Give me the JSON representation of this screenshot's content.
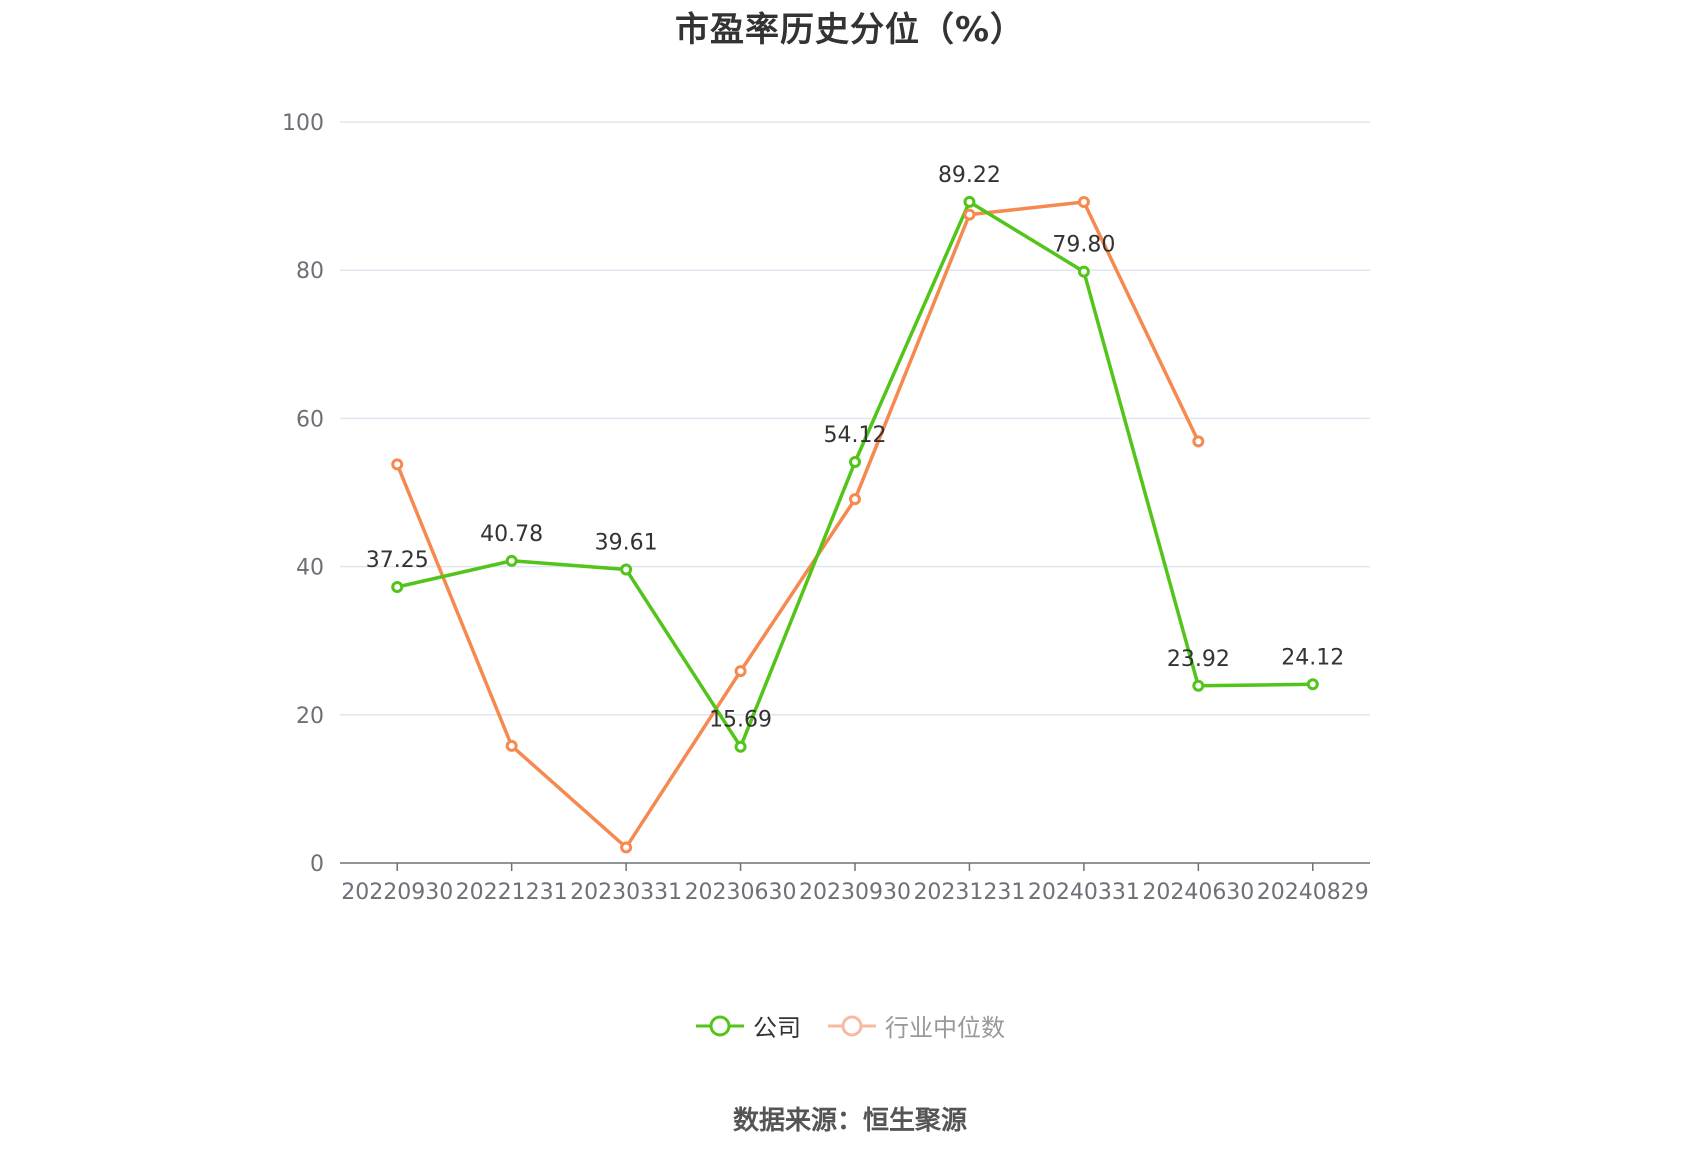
{
  "title": "市盈率历史分位（%）",
  "source": "数据来源：恒生聚源",
  "legend": {
    "company": "公司",
    "industry": "行业中位数"
  },
  "colors": {
    "company": "#52c41a",
    "industry": "#f5894f",
    "industry_legend": "#f9b8a0",
    "grid": "#e0e6f1",
    "axis": "#6e7079"
  },
  "chart_data": {
    "type": "line",
    "title": "市盈率历史分位（%）",
    "categories": [
      "20220930",
      "20221231",
      "20230331",
      "20230630",
      "20230930",
      "20231231",
      "20240331",
      "20240630",
      "20240829"
    ],
    "series": [
      {
        "name": "公司",
        "values": [
          37.25,
          40.78,
          39.61,
          15.69,
          54.12,
          89.22,
          79.8,
          23.92,
          24.12
        ],
        "labels": [
          "37.25",
          "40.78",
          "39.61",
          "15.69",
          "54.12",
          "89.22",
          "79.80",
          "23.92",
          "24.12"
        ]
      },
      {
        "name": "行业中位数",
        "values": [
          53.8,
          15.8,
          2.1,
          25.9,
          49.1,
          87.5,
          89.2,
          56.9,
          null
        ]
      }
    ],
    "ylim": [
      0,
      100
    ],
    "yticks": [
      0,
      20,
      40,
      60,
      80,
      100
    ],
    "grid": true,
    "legend_position": "bottom-center"
  }
}
